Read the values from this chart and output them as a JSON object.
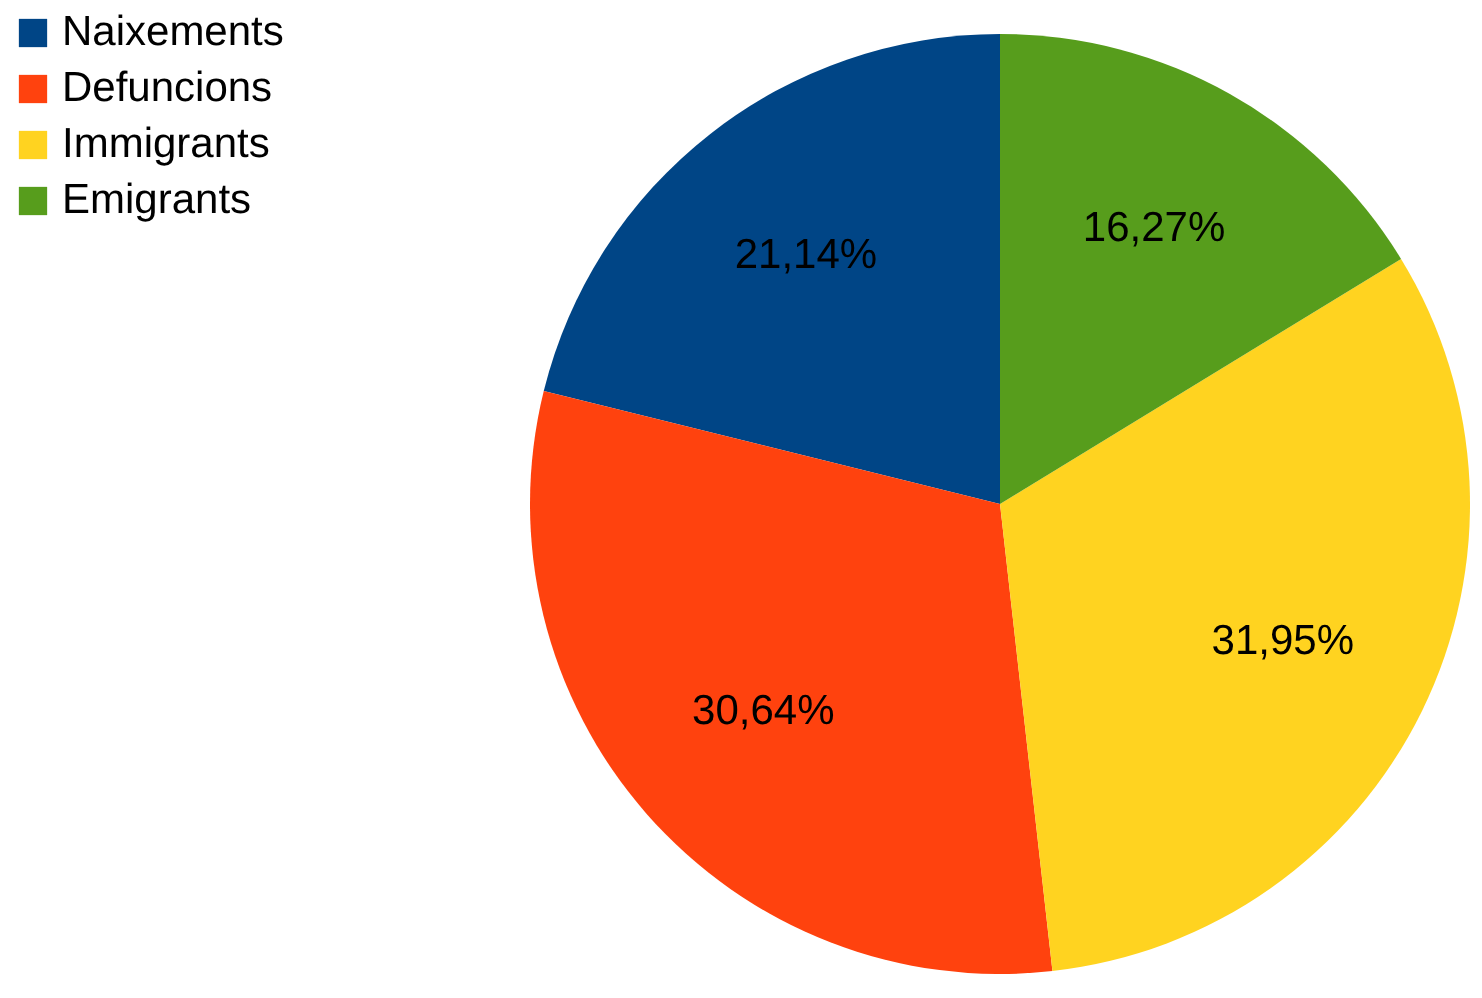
{
  "chart_data": {
    "type": "pie",
    "categories": [
      "Naixements",
      "Defuncions",
      "Immigrants",
      "Emigrants"
    ],
    "values": [
      21.14,
      30.64,
      31.95,
      16.27
    ],
    "colors": [
      "#004586",
      "#ff420e",
      "#ffd320",
      "#579d1c"
    ],
    "value_labels": [
      "21,14%",
      "30,64%",
      "31,95%",
      "16,27%"
    ],
    "legend": "top left"
  }
}
